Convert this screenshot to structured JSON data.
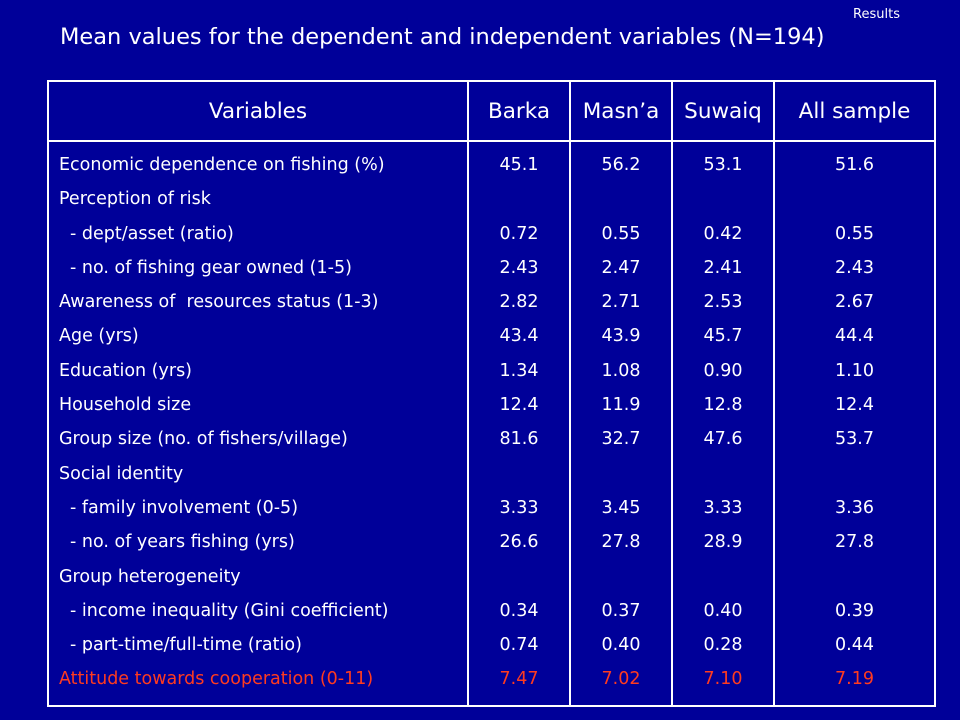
{
  "header": {
    "section_label": "Results",
    "title": "Mean values for the dependent and independent variables (N=194)"
  },
  "table": {
    "columns": [
      "Variables",
      "Barka",
      "Masn’a",
      "Suwaiq",
      "All sample"
    ],
    "rows": [
      {
        "label": "Economic dependence on fishing (%)",
        "values": [
          "45.1",
          "56.2",
          "53.1",
          "51.6"
        ]
      },
      {
        "label": "Perception of risk",
        "values": [
          "",
          "",
          "",
          ""
        ]
      },
      {
        "label": "- dept/asset (ratio)",
        "values": [
          "0.72",
          "0.55",
          "0.42",
          "0.55"
        ]
      },
      {
        "label": "- no. of fishing gear owned (1-5)",
        "values": [
          "2.43",
          "2.47",
          "2.41",
          "2.43"
        ]
      },
      {
        "label": "Awareness of  resources status (1-3)",
        "values": [
          "2.82",
          "2.71",
          "2.53",
          "2.67"
        ]
      },
      {
        "label": "Age (yrs)",
        "values": [
          "43.4",
          "43.9",
          "45.7",
          "44.4"
        ]
      },
      {
        "label": "Education (yrs)",
        "values": [
          "1.34",
          "1.08",
          "0.90",
          "1.10"
        ]
      },
      {
        "label": "Household size",
        "values": [
          "12.4",
          "11.9",
          "12.8",
          "12.4"
        ]
      },
      {
        "label": "Group size (no. of fishers/village)",
        "values": [
          "81.6",
          "32.7",
          "47.6",
          "53.7"
        ]
      },
      {
        "label": "Social identity",
        "values": [
          "",
          "",
          "",
          ""
        ]
      },
      {
        "label": "- family involvement (0-5)",
        "values": [
          "3.33",
          "3.45",
          "3.33",
          "3.36"
        ]
      },
      {
        "label": "- no. of years fishing (yrs)",
        "values": [
          "26.6",
          "27.8",
          "28.9",
          "27.8"
        ]
      },
      {
        "label": "Group heterogeneity",
        "values": [
          "",
          "",
          "",
          ""
        ]
      },
      {
        "label": "- income inequality (Gini coefficient)",
        "values": [
          "0.34",
          "0.37",
          "0.40",
          "0.39"
        ]
      },
      {
        "label": "- part-time/full-time (ratio)",
        "values": [
          "0.74",
          "0.40",
          "0.28",
          "0.44"
        ]
      },
      {
        "label": "Attitude towards cooperation (0-11)",
        "values": [
          "7.47",
          "7.02",
          "7.10",
          "7.19"
        ]
      }
    ]
  },
  "colors": {
    "background": "#000099",
    "text": "#ffffff",
    "highlight": "#ff3b1f"
  }
}
